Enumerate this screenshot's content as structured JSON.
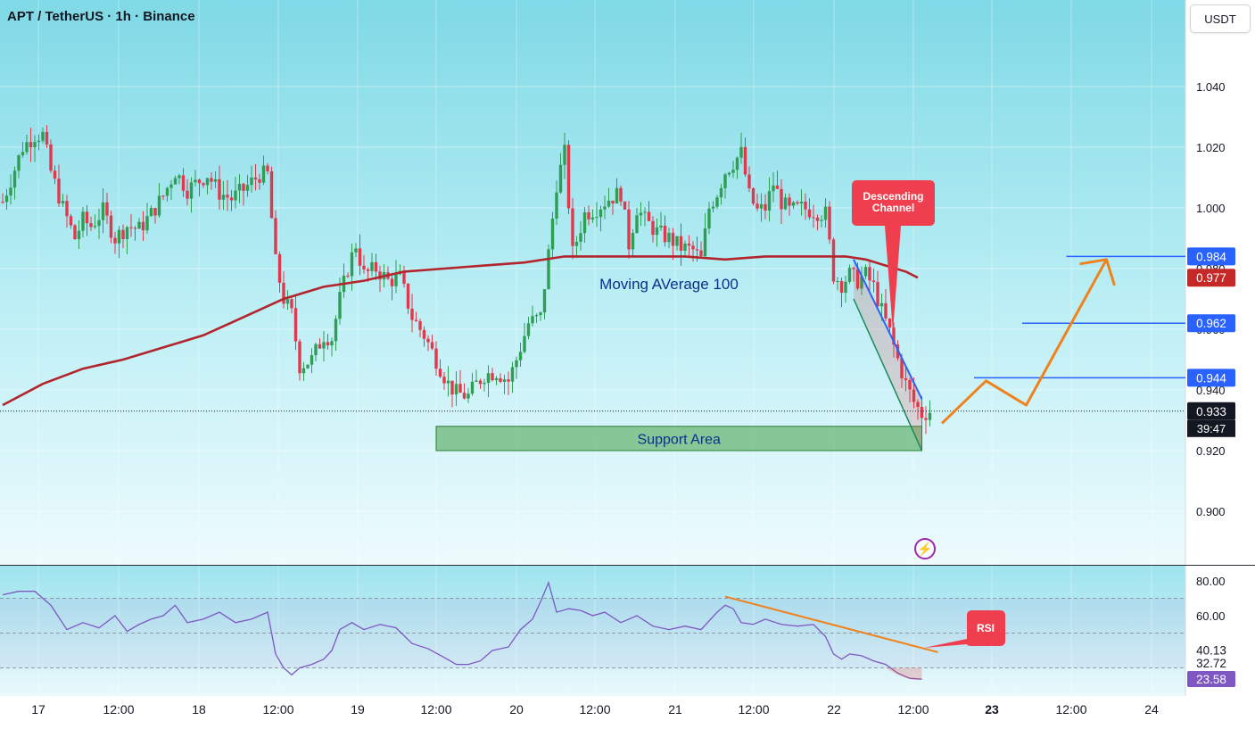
{
  "header": {
    "title": "APT / TetherUS · 1h · Binance"
  },
  "currency_button": {
    "label": "USDT"
  },
  "colors": {
    "up": "#2e9e55",
    "down": "#e0384d",
    "ma": "#b3252d",
    "rsi": "#7e57c2",
    "channel": "#2962ff",
    "support": "#43a047",
    "forecast": "#f0821e",
    "callout": "#ef3e4e"
  },
  "chart_data": [
    {
      "type": "candlestick",
      "ylim": [
        0.888,
        1.052
      ],
      "y_ticks": [
        "1.040",
        "1.020",
        "1.000",
        "0.980",
        "0.960",
        "0.940",
        "0.920",
        "0.900"
      ],
      "x_ticks": [
        "17",
        "12:00",
        "18",
        "12:00",
        "19",
        "12:00",
        "20",
        "12:00",
        "21",
        "12:00",
        "22",
        "12:00",
        "23",
        "12:00",
        "24"
      ],
      "candle_close_path": [
        [
          0,
          1.002
        ],
        [
          5,
          1.02
        ],
        [
          8,
          1.024
        ],
        [
          10,
          1.024
        ],
        [
          12,
          1.012
        ],
        [
          15,
          1.0
        ],
        [
          18,
          0.99
        ],
        [
          20,
          0.996
        ],
        [
          22,
          0.994
        ],
        [
          25,
          0.999
        ],
        [
          28,
          0.99
        ],
        [
          31,
          0.994
        ],
        [
          34,
          0.993
        ],
        [
          37,
          0.998
        ],
        [
          40,
          1.004
        ],
        [
          43,
          1.012
        ],
        [
          46,
          1.006
        ],
        [
          48,
          1.008
        ],
        [
          51,
          1.011
        ],
        [
          54,
          1.005
        ],
        [
          57,
          1.003
        ],
        [
          60,
          1.006
        ],
        [
          64,
          1.011
        ],
        [
          66,
          1.011
        ],
        [
          68,
          0.982
        ],
        [
          70,
          0.97
        ],
        [
          72,
          0.965
        ],
        [
          74,
          0.948
        ],
        [
          77,
          0.95
        ],
        [
          80,
          0.958
        ],
        [
          82,
          0.957
        ],
        [
          84,
          0.97
        ],
        [
          86,
          0.98
        ],
        [
          88,
          0.988
        ],
        [
          90,
          0.978
        ],
        [
          93,
          0.98
        ],
        [
          96,
          0.976
        ],
        [
          99,
          0.977
        ],
        [
          102,
          0.964
        ],
        [
          105,
          0.958
        ],
        [
          108,
          0.95
        ],
        [
          111,
          0.942
        ],
        [
          113,
          0.939
        ],
        [
          116,
          0.938
        ],
        [
          118,
          0.942
        ],
        [
          120,
          0.945
        ],
        [
          123,
          0.946
        ],
        [
          126,
          0.943
        ],
        [
          128,
          0.95
        ],
        [
          131,
          0.962
        ],
        [
          134,
          0.964
        ],
        [
          136,
          0.985
        ],
        [
          138,
          1.008
        ],
        [
          140,
          1.018
        ],
        [
          142,
          0.985
        ],
        [
          145,
          0.998
        ],
        [
          148,
          1.0
        ],
        [
          151,
          1.003
        ],
        [
          154,
          1.005
        ],
        [
          156,
          0.988
        ],
        [
          158,
          1.0
        ],
        [
          160,
          0.996
        ],
        [
          163,
          0.992
        ],
        [
          166,
          0.99
        ],
        [
          169,
          0.987
        ],
        [
          172,
          0.986
        ],
        [
          174,
          0.983
        ],
        [
          176,
          1.0
        ],
        [
          178,
          1.005
        ],
        [
          180,
          1.012
        ],
        [
          182,
          1.015
        ],
        [
          184,
          1.018
        ],
        [
          186,
          1.004
        ],
        [
          188,
          0.999
        ],
        [
          190,
          1.0
        ],
        [
          192,
          1.008
        ],
        [
          194,
          1.002
        ],
        [
          196,
          0.999
        ],
        [
          199,
          1.0
        ],
        [
          202,
          0.999
        ],
        [
          205,
          0.998
        ],
        [
          207,
          0.978
        ],
        [
          209,
          0.975
        ],
        [
          211,
          0.978
        ],
        [
          213,
          0.976
        ],
        [
          215,
          0.978
        ],
        [
          217,
          0.974
        ],
        [
          219,
          0.966
        ],
        [
          221,
          0.959
        ],
        [
          223,
          0.95
        ],
        [
          225,
          0.942
        ],
        [
          227,
          0.936
        ],
        [
          229,
          0.932
        ],
        [
          231,
          0.933
        ]
      ],
      "moving_average": {
        "label": "Moving AVerage 100",
        "values": [
          [
            0,
            0.935
          ],
          [
            10,
            0.942
          ],
          [
            20,
            0.947
          ],
          [
            30,
            0.95
          ],
          [
            40,
            0.954
          ],
          [
            50,
            0.958
          ],
          [
            60,
            0.964
          ],
          [
            70,
            0.97
          ],
          [
            80,
            0.974
          ],
          [
            90,
            0.976
          ],
          [
            100,
            0.979
          ],
          [
            110,
            0.98
          ],
          [
            120,
            0.981
          ],
          [
            130,
            0.982
          ],
          [
            140,
            0.984
          ],
          [
            150,
            0.984
          ],
          [
            160,
            0.984
          ],
          [
            170,
            0.984
          ],
          [
            180,
            0.983
          ],
          [
            190,
            0.984
          ],
          [
            200,
            0.984
          ],
          [
            210,
            0.984
          ],
          [
            215,
            0.983
          ],
          [
            220,
            0.981
          ],
          [
            225,
            0.979
          ],
          [
            228,
            0.977
          ]
        ]
      },
      "price_labels": [
        {
          "value": 0.984,
          "text": "0.984",
          "bg": "#2962ff"
        },
        {
          "value": 0.977,
          "text": "0.977",
          "bg": "#c62828"
        },
        {
          "value": 0.962,
          "text": "0.962",
          "bg": "#2962ff"
        },
        {
          "value": 0.944,
          "text": "0.944",
          "bg": "#2962ff"
        },
        {
          "value": 0.933,
          "text": "0.933",
          "bg": "#131722"
        }
      ],
      "countdown": "39:47",
      "target_lines": [
        {
          "value": 0.984,
          "from": 265
        },
        {
          "value": 0.962,
          "from": 254
        },
        {
          "value": 0.944,
          "from": 242
        }
      ],
      "support_area": {
        "label": "Support Area",
        "from": 108,
        "to": 229,
        "low": 0.92,
        "high": 0.928
      },
      "descending_channel": {
        "label_line1": "Descending",
        "label_line2": "Channel",
        "upper": [
          [
            212,
            0.983
          ],
          [
            229,
            0.937
          ]
        ],
        "lower": [
          [
            212,
            0.97
          ],
          [
            229,
            0.92
          ]
        ]
      },
      "forecast_path": [
        [
          234,
          0.929
        ],
        [
          245,
          0.943
        ],
        [
          255,
          0.935
        ],
        [
          275,
          0.983
        ]
      ]
    },
    {
      "type": "line",
      "name": "RSI",
      "ylim": [
        18,
        90
      ],
      "y_ticks": [
        "80.00",
        "60.00"
      ],
      "value_labels": [
        {
          "value": 40.13,
          "text": "40.13",
          "bg": "#ffffff",
          "fg": "#131722"
        },
        {
          "value": 32.72,
          "text": "32.72",
          "bg": "#ffffff",
          "fg": "#131722"
        },
        {
          "value": 23.58,
          "text": "23.58",
          "bg": "#7e57c2",
          "fg": "#ffffff"
        }
      ],
      "bands": [
        70,
        50,
        30
      ],
      "values": [
        [
          0,
          72
        ],
        [
          4,
          74
        ],
        [
          8,
          74
        ],
        [
          12,
          66
        ],
        [
          16,
          52
        ],
        [
          20,
          56
        ],
        [
          24,
          53
        ],
        [
          28,
          60
        ],
        [
          31,
          51
        ],
        [
          34,
          55
        ],
        [
          37,
          58
        ],
        [
          40,
          60
        ],
        [
          43,
          66
        ],
        [
          46,
          56
        ],
        [
          50,
          58
        ],
        [
          54,
          62
        ],
        [
          58,
          56
        ],
        [
          62,
          58
        ],
        [
          66,
          62
        ],
        [
          68,
          38
        ],
        [
          70,
          30
        ],
        [
          72,
          26
        ],
        [
          74,
          30
        ],
        [
          77,
          32
        ],
        [
          80,
          35
        ],
        [
          82,
          40
        ],
        [
          84,
          52
        ],
        [
          87,
          56
        ],
        [
          90,
          52
        ],
        [
          94,
          55
        ],
        [
          98,
          53
        ],
        [
          102,
          44
        ],
        [
          106,
          41
        ],
        [
          110,
          36
        ],
        [
          113,
          32
        ],
        [
          116,
          32
        ],
        [
          119,
          34
        ],
        [
          122,
          40
        ],
        [
          126,
          42
        ],
        [
          129,
          52
        ],
        [
          132,
          58
        ],
        [
          134,
          68
        ],
        [
          136,
          79
        ],
        [
          138,
          62
        ],
        [
          141,
          64
        ],
        [
          144,
          63
        ],
        [
          147,
          60
        ],
        [
          150,
          62
        ],
        [
          154,
          56
        ],
        [
          158,
          60
        ],
        [
          162,
          54
        ],
        [
          166,
          52
        ],
        [
          170,
          54
        ],
        [
          174,
          52
        ],
        [
          178,
          62
        ],
        [
          180,
          66
        ],
        [
          182,
          64
        ],
        [
          184,
          56
        ],
        [
          187,
          55
        ],
        [
          190,
          58
        ],
        [
          194,
          55
        ],
        [
          198,
          54
        ],
        [
          202,
          55
        ],
        [
          205,
          48
        ],
        [
          207,
          38
        ],
        [
          209,
          35
        ],
        [
          211,
          38
        ],
        [
          214,
          37
        ],
        [
          217,
          34
        ],
        [
          220,
          32
        ],
        [
          223,
          27
        ],
        [
          226,
          24
        ],
        [
          229,
          23.5
        ]
      ],
      "trendline": [
        [
          180,
          71
        ],
        [
          233,
          39
        ]
      ],
      "callout": "RSI"
    }
  ]
}
